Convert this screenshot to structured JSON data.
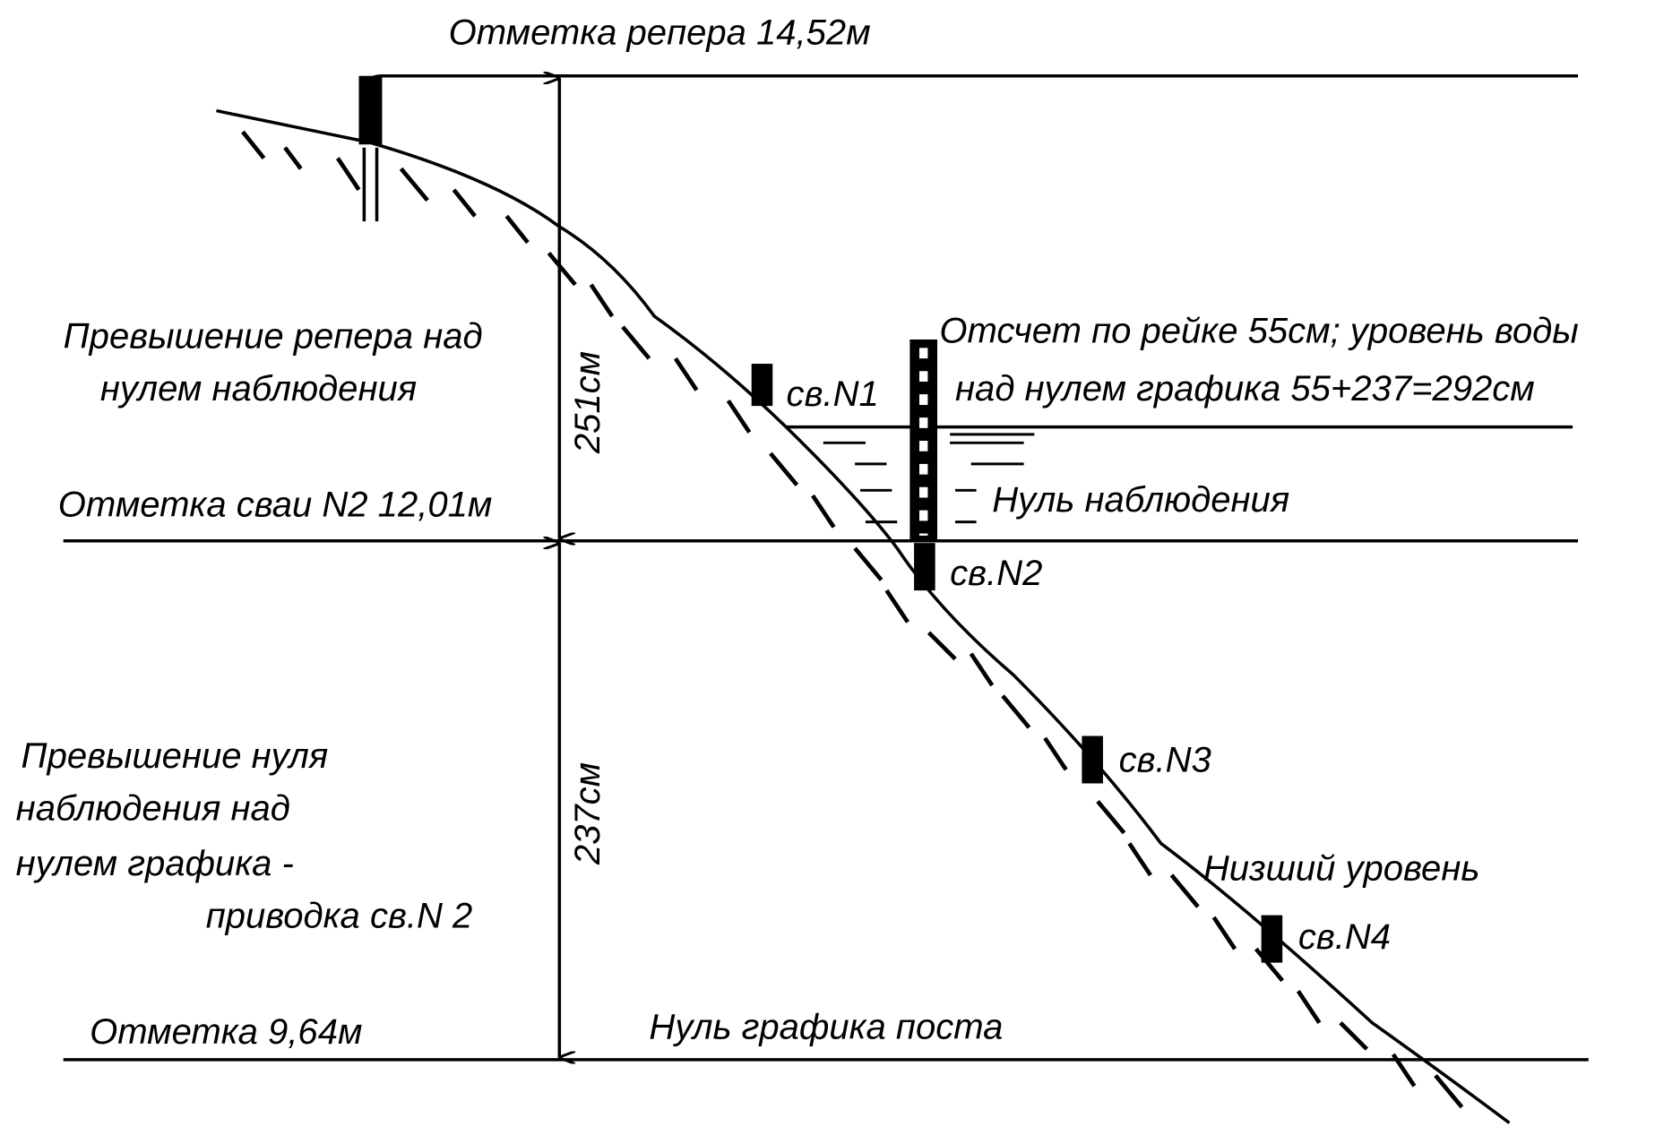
{
  "title": "Отметка репера 14,52м",
  "benchmark_excess": [
    "Превышение репера над",
    "нулем наблюдения"
  ],
  "dim_upper": "251см",
  "pile_mark": "Отметка сваи N2 12,01м",
  "staff_reading": [
    "Отсчет по рейке 55см; уровень воды",
    "над нулем графика 55+237=292см"
  ],
  "piles": [
    "св.N1",
    "св.N2",
    "св.N3",
    "св.N4"
  ],
  "observation_zero": "Нуль наблюдения",
  "zero_excess": [
    "Превышение нуля",
    "наблюдения над",
    "нулем графика -",
    "приводка св.N 2"
  ],
  "dim_lower": "237см",
  "low_level": "Низший уровень",
  "bottom_mark": "Отметка 9,64м",
  "graph_zero": "Нуль графика поста"
}
